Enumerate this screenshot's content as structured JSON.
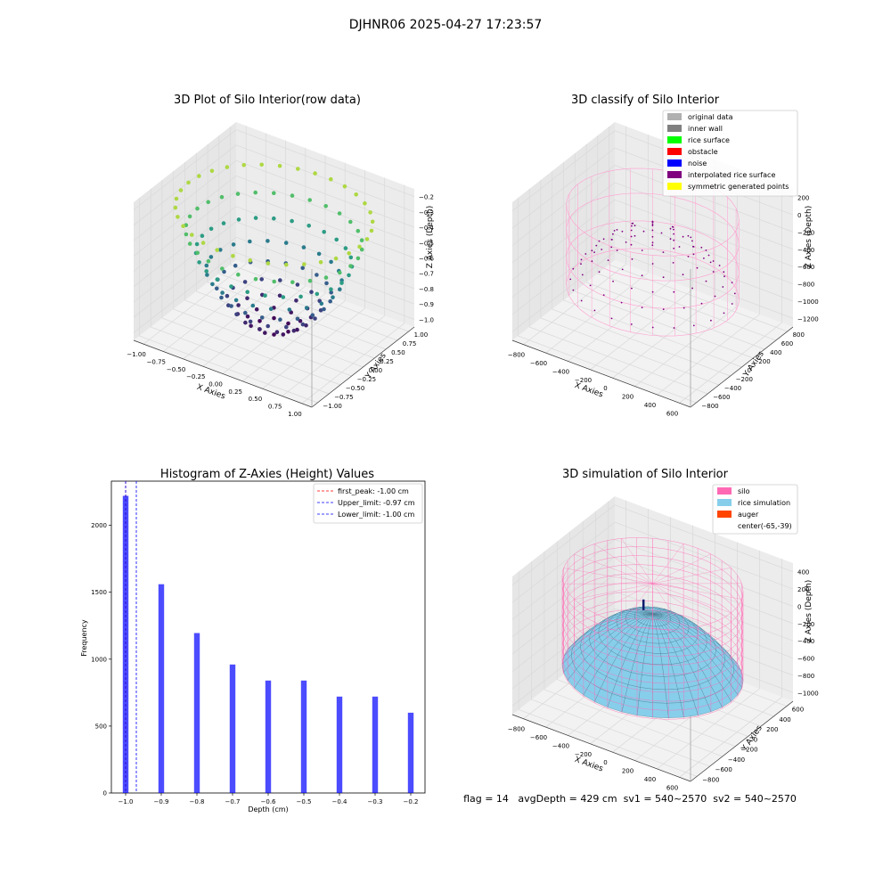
{
  "suptitle": "DJHNR06 2025-04-27 17:23:57",
  "footer": {
    "text": "flag = 14   avgDepth = 429 cm  sv1 = 540~2570  sv2 = 540~2570"
  },
  "panel1": {
    "title": "3D Plot of Silo Interior(row data)",
    "xlabel": "X Axies",
    "ylabel": "Y Axies",
    "zlabel": "Z Axies (Depth)",
    "xticks": [
      "−1.00",
      "−0.75",
      "−0.50",
      "−0.25",
      "0.00",
      "0.25",
      "0.50",
      "0.75",
      "1.00"
    ],
    "yticks": [
      "−1.00",
      "−0.75",
      "−0.50",
      "−0.25",
      "0.00",
      "0.25",
      "0.50",
      "0.75",
      "1.00"
    ],
    "zticks": [
      "−1.0",
      "−0.9",
      "−0.8",
      "−0.7",
      "−0.6",
      "−0.5",
      "−0.4",
      "−0.3",
      "−0.2"
    ],
    "colormap": [
      "#440154",
      "#3b528b",
      "#21918c",
      "#5ec962",
      "#fde725"
    ]
  },
  "panel2": {
    "title": "3D classify of Silo Interior",
    "xlabel": "X Axies",
    "ylabel": "Y Axies",
    "zlabel": "Z Axies (Depth)",
    "xticks": [
      "−800",
      "−600",
      "−400",
      "−200",
      "0",
      "200",
      "400",
      "600"
    ],
    "yticks": [
      "−800",
      "−600",
      "−400",
      "−200",
      "0",
      "200",
      "400",
      "600",
      "800"
    ],
    "zticks": [
      "−1200",
      "−1000",
      "−800",
      "−600",
      "−400",
      "−200",
      "0",
      "200"
    ],
    "legend": [
      {
        "label": "original data",
        "color": "#b0b0b0"
      },
      {
        "label": "inner wall",
        "color": "#808080"
      },
      {
        "label": "rice surface",
        "color": "#00ff00"
      },
      {
        "label": "obstacle",
        "color": "#ff0000"
      },
      {
        "label": "noise",
        "color": "#0000ff"
      },
      {
        "label": "interpolated rice surface",
        "color": "#800080"
      },
      {
        "label": "symmetric generated points",
        "color": "#ffff00"
      }
    ]
  },
  "panel3": {
    "title": "Histogram of Z-Axies (Height) Values",
    "xlabel": "Depth (cm)",
    "ylabel": "Frequency",
    "legend": [
      {
        "label": "first_peak: -1.00 cm",
        "color": "#ff0000"
      },
      {
        "label": "Upper_limit: -0.97 cm",
        "color": "#0000ff"
      },
      {
        "label": "Lower_limit: -1.00 cm",
        "color": "#0000ff"
      }
    ]
  },
  "panel4": {
    "title": "3D simulation of Silo Interior",
    "xlabel": "X Axies",
    "ylabel": "Y Axies",
    "zlabel": "Z Axies (Depth)",
    "xticks": [
      "−800",
      "−600",
      "−400",
      "−200",
      "0",
      "200",
      "400",
      "600"
    ],
    "yticks": [
      "−800",
      "−600",
      "−400",
      "−200",
      "0",
      "200",
      "400",
      "600"
    ],
    "zticks": [
      "−1000",
      "−800",
      "−600",
      "−400",
      "−200",
      "0",
      "200",
      "400"
    ],
    "legend": [
      {
        "label": "silo",
        "color": "#ff69b4"
      },
      {
        "label": "rice simulation",
        "color": "#87ceeb"
      },
      {
        "label": "auger",
        "color": "#ff4500"
      },
      {
        "label": "center(-65,-39)",
        "color": "#ffffff"
      }
    ]
  },
  "chart_data": {
    "type": "bar",
    "title": "Histogram of Z-Axies (Height) Values",
    "xlabel": "Depth (cm)",
    "ylabel": "Frequency",
    "x": [
      -1.0,
      -0.9,
      -0.8,
      -0.7,
      -0.6,
      -0.5,
      -0.4,
      -0.3,
      -0.2
    ],
    "values": [
      2220,
      1560,
      1195,
      960,
      840,
      840,
      720,
      720,
      600
    ],
    "xticks": [
      -1.0,
      -0.9,
      -0.8,
      -0.7,
      -0.6,
      -0.5,
      -0.4,
      -0.3,
      -0.2
    ],
    "yticks": [
      0,
      500,
      1000,
      1500,
      2000
    ],
    "xlim": [
      -1.04,
      -0.16
    ],
    "ylim": [
      0,
      2330
    ],
    "bar_color": "#0000ff",
    "vlines": [
      {
        "x": -1.0,
        "color": "#ff0000",
        "style": "dashed"
      },
      {
        "x": -0.97,
        "color": "#0000ff",
        "style": "dashed"
      },
      {
        "x": -1.0,
        "color": "#0000ff",
        "style": "dashed"
      }
    ],
    "legend_position": "upper right"
  }
}
